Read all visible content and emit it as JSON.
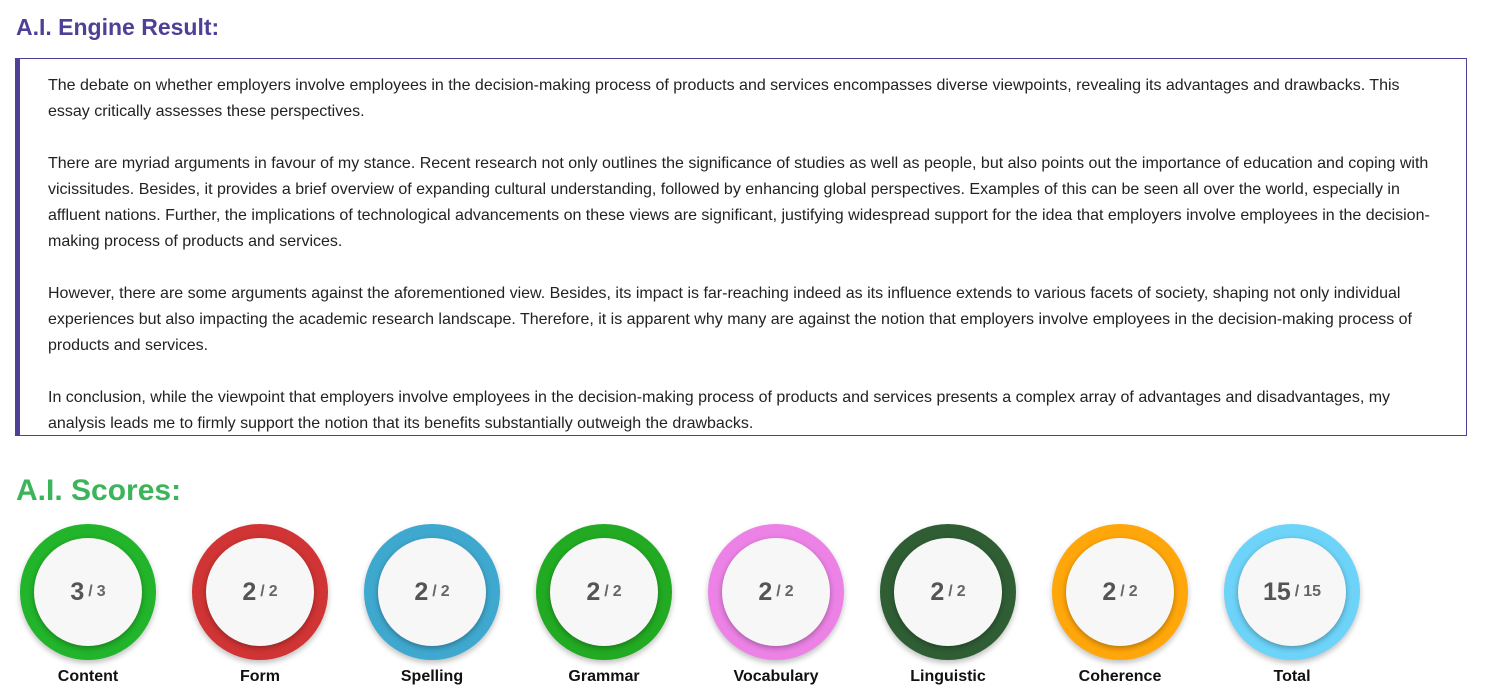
{
  "header": {
    "title": "A.I. Engine Result:"
  },
  "essay": {
    "paragraphs": [
      "The debate on whether employers involve employees in the decision-making process of products and services encompasses diverse viewpoints, revealing its advantages and drawbacks. This essay critically assesses these perspectives.",
      "There are myriad arguments in favour of my stance. Recent research not only outlines the significance of studies as well as people, but also points out the importance of education and coping with vicissitudes. Besides, it provides a brief overview of expanding cultural understanding, followed by enhancing global perspectives. Examples of this can be seen all over the world, especially in affluent nations. Further, the implications of technological advancements on these views are significant, justifying widespread support for the idea that employers involve employees in the decision-making process of products and services.",
      "However, there are some arguments against the aforementioned view. Besides, its impact is far-reaching indeed as its influence extends to various facets of society, shaping not only individual experiences but also impacting the academic research landscape. Therefore, it is apparent why many are against the notion that employers involve employees in the decision-making process of products and services.",
      "In conclusion, while the viewpoint that employers involve employees in the decision-making process of products and services presents a complex array of advantages and disadvantages, my analysis leads me to firmly support the notion that its benefits substantially outweigh the drawbacks."
    ]
  },
  "scores": {
    "title": "A.I. Scores:",
    "separator": "/",
    "items": [
      {
        "label": "Content",
        "score": 3,
        "max": 3,
        "color": "#22b42a"
      },
      {
        "label": "Form",
        "score": 2,
        "max": 2,
        "color": "#d03434"
      },
      {
        "label": "Spelling",
        "score": 2,
        "max": 2,
        "color": "#3fa8cf"
      },
      {
        "label": "Grammar",
        "score": 2,
        "max": 2,
        "color": "#22aa22"
      },
      {
        "label": "Vocabulary",
        "score": 2,
        "max": 2,
        "color": "#ec82e6"
      },
      {
        "label": "Linguistic",
        "score": 2,
        "max": 2,
        "color": "#2f5e34"
      },
      {
        "label": "Coherence",
        "score": 2,
        "max": 2,
        "color": "#ffa60a"
      },
      {
        "label": "Total",
        "score": 15,
        "max": 15,
        "color": "#6dd3f8"
      }
    ]
  }
}
